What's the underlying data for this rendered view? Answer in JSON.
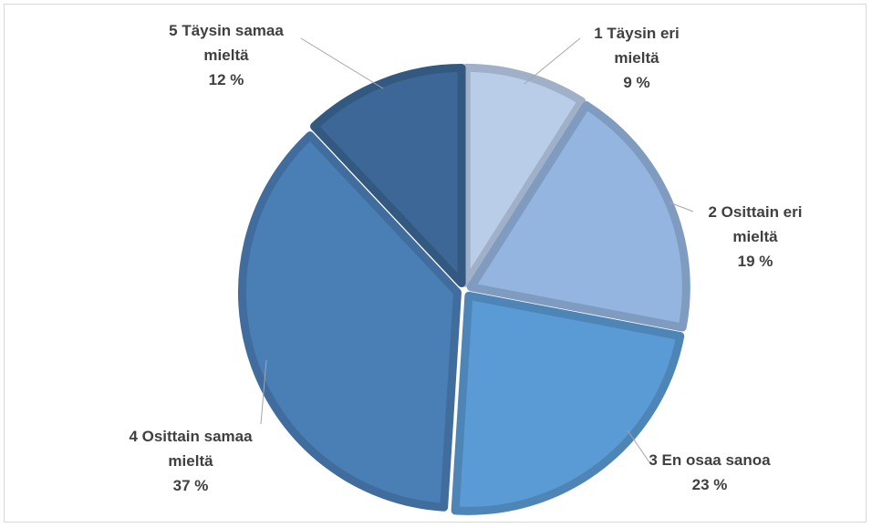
{
  "chart_data": {
    "type": "pie",
    "title": "",
    "slices": [
      {
        "label_lines": [
          "1 Täysin eri",
          "mieltä"
        ],
        "value": 9,
        "value_label": "9 %",
        "color": "#b9cde9"
      },
      {
        "label_lines": [
          "2 Osittain eri",
          "mieltä"
        ],
        "value": 19,
        "value_label": "19 %",
        "color": "#94b5df"
      },
      {
        "label_lines": [
          "3 En osaa sanoa"
        ],
        "value": 23,
        "value_label": "23 %",
        "color": "#5b9bd5"
      },
      {
        "label_lines": [
          "4 Osittain samaa",
          "mieltä"
        ],
        "value": 37,
        "value_label": "37 %",
        "color": "#4a7fb6"
      },
      {
        "label_lines": [
          "5 Täysin samaa",
          "mieltä"
        ],
        "value": 12,
        "value_label": "12 %",
        "color": "#3c6796"
      }
    ],
    "legend": "none",
    "data_labels": "outside with leader lines"
  }
}
